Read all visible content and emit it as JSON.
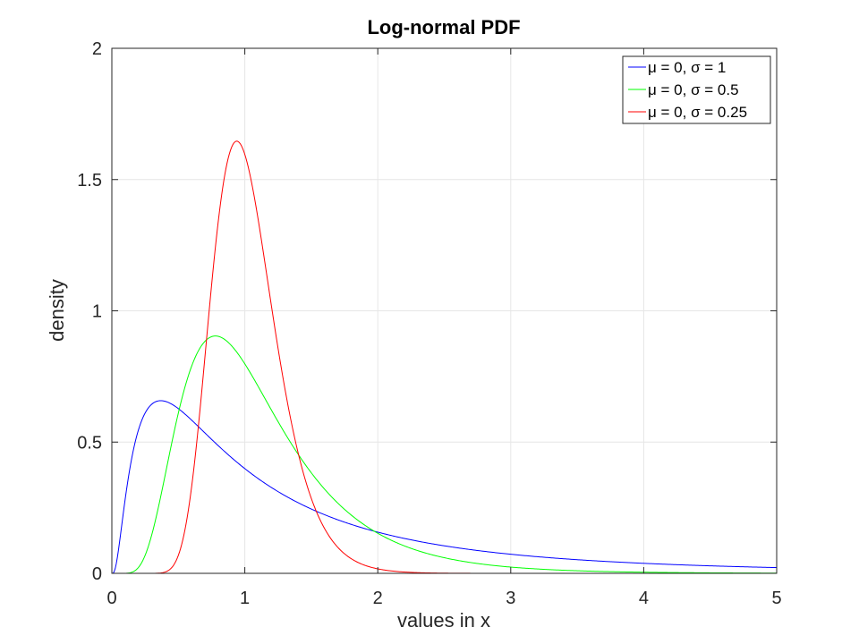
{
  "chart_data": {
    "type": "line",
    "title": "Log-normal PDF",
    "xlabel": "values in x",
    "ylabel": "density",
    "xlim": [
      0,
      5
    ],
    "ylim": [
      0,
      2
    ],
    "xticks": [
      0,
      1,
      2,
      3,
      4,
      5
    ],
    "xtick_labels": [
      "0",
      "1",
      "2",
      "3",
      "4",
      "5"
    ],
    "yticks": [
      0,
      0.5,
      1,
      1.5,
      2
    ],
    "ytick_labels": [
      "0",
      "0.5",
      "1",
      "1.5",
      "2"
    ],
    "grid": true,
    "legend_position": "top-right",
    "series": [
      {
        "name": "μ = 0, σ = 1",
        "color": "#0000ff",
        "mu": 0,
        "sigma": 1,
        "x": [
          0,
          0.05,
          0.1,
          0.15,
          0.2,
          0.3,
          0.37,
          0.5,
          0.6,
          0.8,
          1.0,
          1.2,
          1.5,
          2.0,
          2.5,
          3.0,
          3.5,
          4.0,
          4.5,
          5.0
        ],
        "y": [
          0,
          0.0891,
          0.2815,
          0.4461,
          0.5463,
          0.6276,
          0.6577,
          0.6275,
          0.5835,
          0.4864,
          0.3989,
          0.3279,
          0.2449,
          0.1569,
          0.1048,
          0.0727,
          0.052,
          0.038,
          0.0286,
          0.0219
        ]
      },
      {
        "name": "μ = 0, σ = 0.5",
        "color": "#00ff00",
        "mu": 0,
        "sigma": 0.5,
        "x": [
          0,
          0.15,
          0.2,
          0.3,
          0.4,
          0.5,
          0.6,
          0.7,
          0.78,
          0.9,
          1.0,
          1.2,
          1.4,
          1.6,
          1.8,
          2.0,
          2.5,
          3.0,
          3.5,
          4.0,
          4.3,
          5.0
        ],
        "y": [
          0,
          0.0075,
          0.0304,
          0.1957,
          0.4704,
          0.6912,
          0.829,
          0.8901,
          0.9044,
          0.8796,
          0.7979,
          0.6245,
          0.4619,
          0.3303,
          0.2304,
          0.1587,
          0.0625,
          0.0253,
          0.0105,
          0.0046,
          0.0028,
          0.001
        ]
      },
      {
        "name": "μ = 0, σ = 0.25",
        "color": "#ff0000",
        "mu": 0,
        "sigma": 0.25,
        "x": [
          0,
          0.4,
          0.5,
          0.6,
          0.7,
          0.8,
          0.9,
          0.94,
          1.0,
          1.1,
          1.2,
          1.3,
          1.4,
          1.5,
          1.7,
          2.0,
          2.3,
          2.5,
          3.0,
          5.0
        ],
        "y": [
          0,
          0.0062,
          0.069,
          0.3008,
          0.7266,
          1.1963,
          1.533,
          1.643,
          1.5958,
          1.3854,
          1.0946,
          0.7978,
          0.5439,
          0.3505,
          0.1276,
          0.0224,
          0.0034,
          0.0009,
          0.0,
          0.0
        ]
      }
    ]
  }
}
